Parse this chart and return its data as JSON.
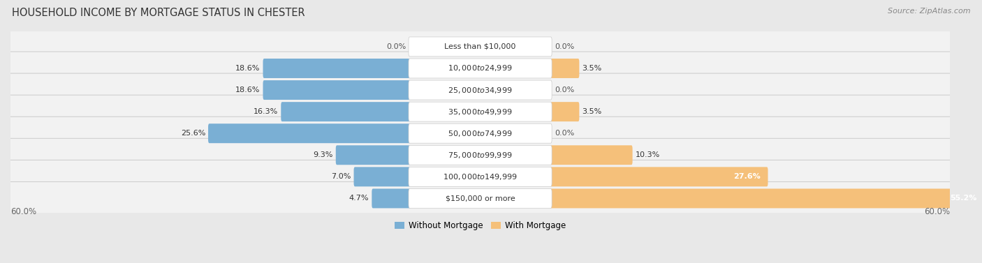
{
  "title": "HOUSEHOLD INCOME BY MORTGAGE STATUS IN CHESTER",
  "source": "Source: ZipAtlas.com",
  "categories": [
    "Less than $10,000",
    "$10,000 to $24,999",
    "$25,000 to $34,999",
    "$35,000 to $49,999",
    "$50,000 to $74,999",
    "$75,000 to $99,999",
    "$100,000 to $149,999",
    "$150,000 or more"
  ],
  "without_mortgage": [
    0.0,
    18.6,
    18.6,
    16.3,
    25.6,
    9.3,
    7.0,
    4.7
  ],
  "with_mortgage": [
    0.0,
    3.5,
    0.0,
    3.5,
    0.0,
    10.3,
    27.6,
    55.2
  ],
  "color_without": "#7aafd4",
  "color_with": "#f5c07a",
  "axis_max": 60.0,
  "bg_color": "#e8e8e8",
  "row_bg_color": "#f2f2f2",
  "row_border_color": "#d0d0d0",
  "label_pill_color": "#ffffff",
  "title_fontsize": 10.5,
  "label_fontsize": 8.0,
  "tick_fontsize": 8.5,
  "source_fontsize": 8.0,
  "pct_fontsize": 8.0
}
